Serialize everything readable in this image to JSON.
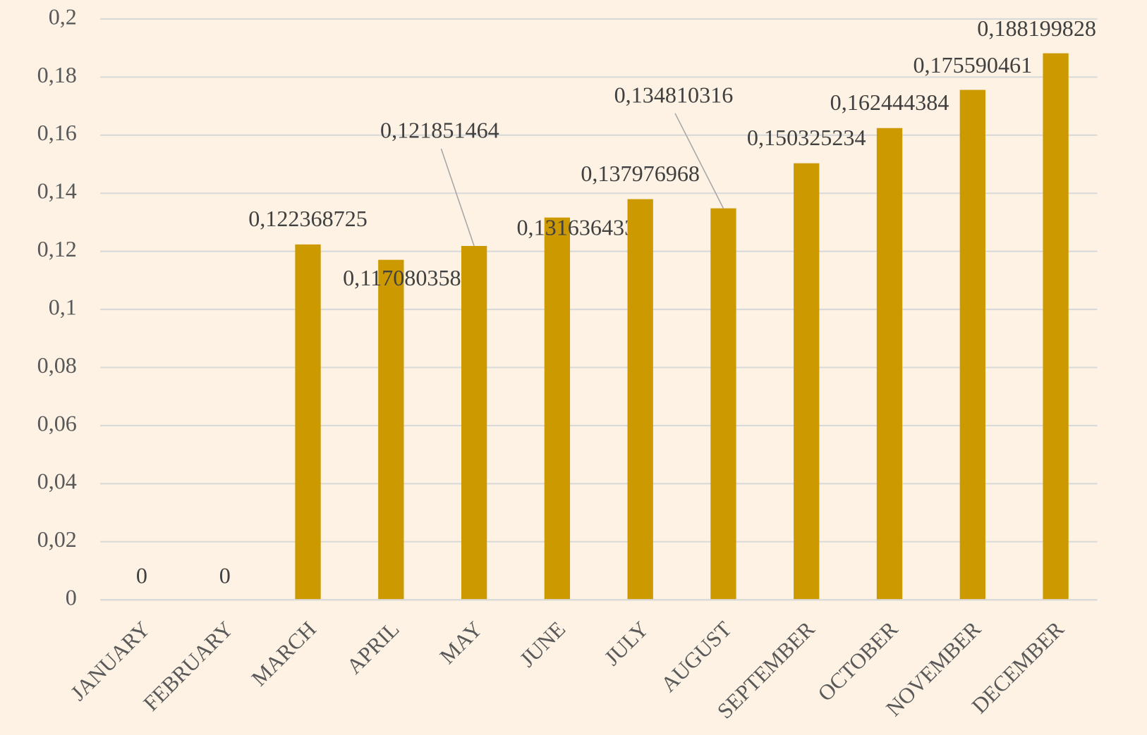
{
  "chart_data": {
    "type": "bar",
    "categories": [
      "JANUARY",
      "FEBRUARY",
      "MARCH",
      "APRIL",
      "MAY",
      "JUNE",
      "JULY",
      "AUGUST",
      "SEPTEMBER",
      "OCTOBER",
      "NOVEMBER",
      "DECEMBER"
    ],
    "values": [
      0,
      0,
      0.122368725,
      0.117080358,
      0.121851464,
      0.131636433,
      0.137976968,
      0.134810316,
      0.150325234,
      0.162444384,
      0.175590461,
      0.188199828
    ],
    "value_labels": [
      "0",
      "0",
      "0,122368725",
      "0,117080358",
      "0,121851464",
      "0,131636433",
      "0,137976968",
      "0,134810316",
      "0,150325234",
      "0,162444384",
      "0,175590461",
      "0,188199828"
    ],
    "color": "#cc9900",
    "ylim": [
      0,
      0.2
    ],
    "yticks": [
      0,
      {
        "value": 0.02,
        "label": "0,02"
      },
      {
        "value": 0.04,
        "label": "0,04"
      },
      {
        "value": 0.06,
        "label": "0,06"
      },
      {
        "value": 0.08,
        "label": "0,08"
      },
      {
        "value": 0.1,
        "label": "0,1"
      },
      {
        "value": 0.12,
        "label": "0,12"
      },
      {
        "value": 0.14,
        "label": "0,14"
      },
      {
        "value": 0.16,
        "label": "0,16"
      },
      {
        "value": 0.18,
        "label": "0,18"
      },
      {
        "value": 0.2,
        "label": "0,2"
      }
    ],
    "grid": true
  }
}
